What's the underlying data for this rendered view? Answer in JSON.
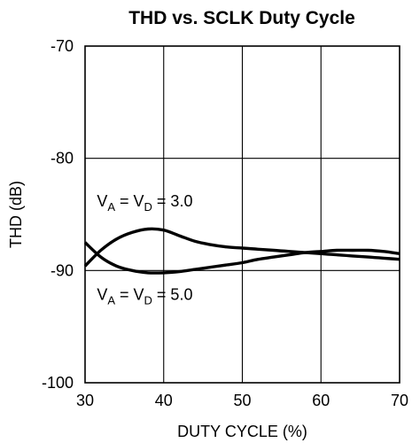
{
  "chart_data": {
    "type": "line",
    "title": "THD vs. SCLK Duty Cycle",
    "xlabel": "DUTY CYCLE (%)",
    "ylabel": "THD (dB)",
    "xlim": [
      30,
      70
    ],
    "ylim": [
      -100,
      -70
    ],
    "xticks": [
      30,
      40,
      50,
      60,
      70
    ],
    "yticks": [
      -70,
      -80,
      -90,
      -100
    ],
    "xtick_labels": [
      "30",
      "40",
      "50",
      "60",
      "70"
    ],
    "ytick_labels": [
      "-70",
      "-80",
      "-90",
      "-100"
    ],
    "grid": true,
    "series": [
      {
        "name": "VA = VD = 3.0",
        "x": [
          30,
          32,
          34,
          36,
          38,
          40,
          42,
          44,
          46,
          48,
          50,
          52,
          54,
          56,
          58,
          60,
          62,
          64,
          66,
          68,
          70
        ],
        "y": [
          -89.6,
          -88.2,
          -87.2,
          -86.6,
          -86.3,
          -86.4,
          -86.9,
          -87.4,
          -87.7,
          -87.9,
          -88.0,
          -88.1,
          -88.2,
          -88.3,
          -88.4,
          -88.5,
          -88.6,
          -88.7,
          -88.8,
          -88.9,
          -89.0
        ]
      },
      {
        "name": "VA = VD = 5.0",
        "x": [
          30,
          32,
          34,
          36,
          38,
          40,
          42,
          44,
          46,
          48,
          50,
          52,
          54,
          56,
          58,
          60,
          62,
          64,
          66,
          68,
          70
        ],
        "y": [
          -87.5,
          -88.8,
          -89.6,
          -90.0,
          -90.2,
          -90.2,
          -90.1,
          -89.9,
          -89.7,
          -89.5,
          -89.3,
          -89.0,
          -88.8,
          -88.6,
          -88.4,
          -88.3,
          -88.2,
          -88.2,
          -88.2,
          -88.3,
          -88.5
        ]
      }
    ],
    "annotations": [
      {
        "main": "V",
        "sub1": "A",
        "mid": " = V",
        "sub2": "D",
        "tail": " = 3.0",
        "x": 31.5,
        "y": -84.3
      },
      {
        "main": "V",
        "sub1": "A",
        "mid": " = V",
        "sub2": "D",
        "tail": " = 5.0",
        "x": 31.5,
        "y": -92.6
      }
    ]
  }
}
